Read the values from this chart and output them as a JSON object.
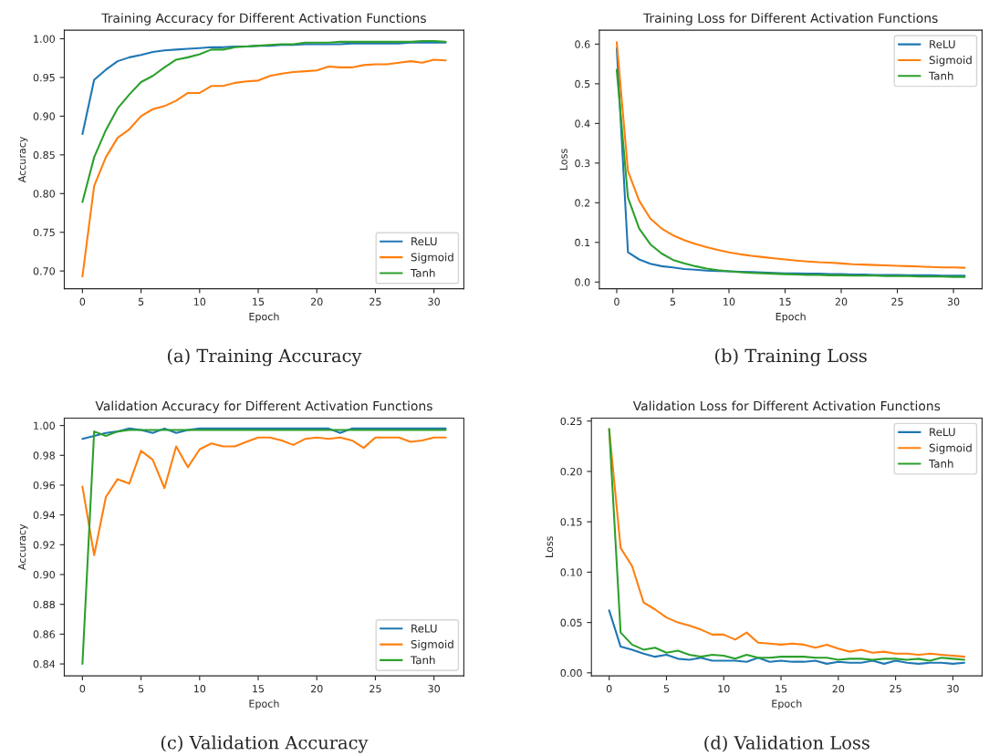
{
  "chart_data": [
    {
      "type": "line",
      "title": "Training Accuracy for Different Activation Functions",
      "xlabel": "Epoch",
      "ylabel": "Accuracy",
      "annotations": [
        "(a) Training Accuracy"
      ],
      "x": [
        0,
        1,
        2,
        3,
        4,
        5,
        6,
        7,
        8,
        9,
        10,
        11,
        12,
        13,
        14,
        15,
        16,
        17,
        18,
        19,
        20,
        21,
        22,
        23,
        24,
        25,
        26,
        27,
        28,
        29,
        30,
        31
      ],
      "xlim": [
        -1.55,
        32.55
      ],
      "xticks": [
        0,
        5,
        10,
        15,
        20,
        25,
        30
      ],
      "ylim": [
        0.677,
        1.011
      ],
      "yticks": [
        {
          "value": 0.7,
          "label": "0.70"
        },
        {
          "value": 0.75,
          "label": "0.75"
        },
        {
          "value": 0.8,
          "label": "0.80"
        },
        {
          "value": 0.85,
          "label": "0.85"
        },
        {
          "value": 0.9,
          "label": "0.90"
        },
        {
          "value": 0.95,
          "label": "0.95"
        },
        {
          "value": 1.0,
          "label": "1.00"
        }
      ],
      "legend": "lower right",
      "grid": false,
      "series": [
        {
          "name": "ReLU",
          "color": "#1f77b4",
          "values": [
            0.877,
            0.947,
            0.96,
            0.971,
            0.976,
            0.979,
            0.983,
            0.985,
            0.986,
            0.987,
            0.988,
            0.989,
            0.989,
            0.99,
            0.99,
            0.991,
            0.991,
            0.992,
            0.992,
            0.993,
            0.993,
            0.993,
            0.993,
            0.994,
            0.994,
            0.994,
            0.994,
            0.994,
            0.995,
            0.995,
            0.995,
            0.995
          ]
        },
        {
          "name": "Sigmoid",
          "color": "#ff7f0e",
          "values": [
            0.693,
            0.81,
            0.847,
            0.872,
            0.883,
            0.9,
            0.909,
            0.913,
            0.92,
            0.93,
            0.93,
            0.939,
            0.939,
            0.943,
            0.945,
            0.946,
            0.952,
            0.955,
            0.957,
            0.958,
            0.959,
            0.964,
            0.963,
            0.963,
            0.966,
            0.967,
            0.967,
            0.969,
            0.971,
            0.969,
            0.973,
            0.972
          ]
        },
        {
          "name": "Tanh",
          "color": "#2ca02c",
          "values": [
            0.789,
            0.847,
            0.882,
            0.91,
            0.928,
            0.944,
            0.952,
            0.963,
            0.973,
            0.976,
            0.98,
            0.986,
            0.986,
            0.989,
            0.99,
            0.991,
            0.992,
            0.993,
            0.993,
            0.995,
            0.995,
            0.995,
            0.996,
            0.996,
            0.996,
            0.996,
            0.996,
            0.996,
            0.996,
            0.997,
            0.997,
            0.996
          ]
        }
      ]
    },
    {
      "type": "line",
      "title": "Training Loss for Different Activation Functions",
      "xlabel": "Epoch",
      "ylabel": "Loss",
      "annotations": [
        "(b) Training Loss"
      ],
      "x": [
        0,
        1,
        2,
        3,
        4,
        5,
        6,
        7,
        8,
        9,
        10,
        11,
        12,
        13,
        14,
        15,
        16,
        17,
        18,
        19,
        20,
        21,
        22,
        23,
        24,
        25,
        26,
        27,
        28,
        29,
        30,
        31
      ],
      "xlim": [
        -1.55,
        32.55
      ],
      "xticks": [
        0,
        5,
        10,
        15,
        20,
        25,
        30
      ],
      "ylim": [
        -0.017,
        0.635
      ],
      "yticks": [
        {
          "value": 0.0,
          "label": "0.0"
        },
        {
          "value": 0.1,
          "label": "0.1"
        },
        {
          "value": 0.2,
          "label": "0.2"
        },
        {
          "value": 0.3,
          "label": "0.3"
        },
        {
          "value": 0.4,
          "label": "0.4"
        },
        {
          "value": 0.5,
          "label": "0.5"
        },
        {
          "value": 0.6,
          "label": "0.6"
        }
      ],
      "legend": "upper right",
      "grid": false,
      "series": [
        {
          "name": "ReLU",
          "color": "#1f77b4",
          "values": [
            0.59,
            0.075,
            0.057,
            0.046,
            0.04,
            0.037,
            0.033,
            0.031,
            0.029,
            0.028,
            0.027,
            0.026,
            0.025,
            0.024,
            0.023,
            0.022,
            0.022,
            0.021,
            0.021,
            0.02,
            0.02,
            0.019,
            0.019,
            0.018,
            0.018,
            0.018,
            0.017,
            0.017,
            0.017,
            0.016,
            0.016,
            0.016
          ]
        },
        {
          "name": "Sigmoid",
          "color": "#ff7f0e",
          "values": [
            0.605,
            0.28,
            0.205,
            0.16,
            0.135,
            0.118,
            0.106,
            0.096,
            0.088,
            0.081,
            0.075,
            0.07,
            0.066,
            0.063,
            0.06,
            0.057,
            0.054,
            0.052,
            0.05,
            0.049,
            0.047,
            0.045,
            0.044,
            0.043,
            0.042,
            0.041,
            0.04,
            0.039,
            0.038,
            0.037,
            0.037,
            0.036
          ]
        },
        {
          "name": "Tanh",
          "color": "#2ca02c",
          "values": [
            0.535,
            0.213,
            0.135,
            0.095,
            0.072,
            0.056,
            0.047,
            0.04,
            0.034,
            0.03,
            0.027,
            0.025,
            0.023,
            0.022,
            0.021,
            0.02,
            0.019,
            0.018,
            0.018,
            0.017,
            0.017,
            0.016,
            0.016,
            0.016,
            0.015,
            0.015,
            0.015,
            0.014,
            0.014,
            0.014,
            0.013,
            0.013
          ]
        }
      ]
    },
    {
      "type": "line",
      "title": "Validation Accuracy for Different Activation Functions",
      "xlabel": "Epoch",
      "ylabel": "Accuracy",
      "annotations": [
        "(c) Validation Accuracy"
      ],
      "x": [
        0,
        1,
        2,
        3,
        4,
        5,
        6,
        7,
        8,
        9,
        10,
        11,
        12,
        13,
        14,
        15,
        16,
        17,
        18,
        19,
        20,
        21,
        22,
        23,
        24,
        25,
        26,
        27,
        28,
        29,
        30,
        31
      ],
      "xlim": [
        -1.55,
        32.55
      ],
      "xticks": [
        0,
        5,
        10,
        15,
        20,
        25,
        30
      ],
      "ylim": [
        0.832,
        1.005
      ],
      "yticks": [
        {
          "value": 0.84,
          "label": "0.84"
        },
        {
          "value": 0.86,
          "label": "0.86"
        },
        {
          "value": 0.88,
          "label": "0.88"
        },
        {
          "value": 0.9,
          "label": "0.90"
        },
        {
          "value": 0.92,
          "label": "0.92"
        },
        {
          "value": 0.94,
          "label": "0.94"
        },
        {
          "value": 0.96,
          "label": "0.96"
        },
        {
          "value": 0.98,
          "label": "0.98"
        },
        {
          "value": 1.0,
          "label": "1.00"
        }
      ],
      "legend": "lower right",
      "grid": false,
      "series": [
        {
          "name": "ReLU",
          "color": "#1f77b4",
          "values": [
            0.991,
            0.993,
            0.995,
            0.996,
            0.998,
            0.997,
            0.995,
            0.998,
            0.995,
            0.997,
            0.998,
            0.998,
            0.998,
            0.998,
            0.998,
            0.998,
            0.998,
            0.998,
            0.998,
            0.998,
            0.998,
            0.998,
            0.995,
            0.998,
            0.998,
            0.998,
            0.998,
            0.998,
            0.998,
            0.998,
            0.998,
            0.998
          ]
        },
        {
          "name": "Sigmoid",
          "color": "#ff7f0e",
          "values": [
            0.959,
            0.913,
            0.952,
            0.964,
            0.961,
            0.983,
            0.977,
            0.958,
            0.986,
            0.972,
            0.984,
            0.988,
            0.986,
            0.986,
            0.989,
            0.992,
            0.992,
            0.99,
            0.987,
            0.991,
            0.992,
            0.991,
            0.992,
            0.99,
            0.985,
            0.992,
            0.992,
            0.992,
            0.989,
            0.99,
            0.992,
            0.992
          ]
        },
        {
          "name": "Tanh",
          "color": "#2ca02c",
          "values": [
            0.84,
            0.996,
            0.993,
            0.996,
            0.997,
            0.997,
            0.997,
            0.997,
            0.997,
            0.997,
            0.997,
            0.997,
            0.997,
            0.997,
            0.997,
            0.997,
            0.997,
            0.997,
            0.997,
            0.997,
            0.997,
            0.997,
            0.997,
            0.997,
            0.997,
            0.997,
            0.997,
            0.997,
            0.997,
            0.997,
            0.997,
            0.997
          ]
        }
      ]
    },
    {
      "type": "line",
      "title": "Validation Loss for Different Activation Functions",
      "xlabel": "Epoch",
      "ylabel": "Loss",
      "annotations": [
        "(d) Validation Loss"
      ],
      "x": [
        0,
        1,
        2,
        3,
        4,
        5,
        6,
        7,
        8,
        9,
        10,
        11,
        12,
        13,
        14,
        15,
        16,
        17,
        18,
        19,
        20,
        21,
        22,
        23,
        24,
        25,
        26,
        27,
        28,
        29,
        30,
        31
      ],
      "xlim": [
        -1.55,
        32.55
      ],
      "xticks": [
        0,
        5,
        10,
        15,
        20,
        25,
        30
      ],
      "ylim": [
        -0.003,
        0.253
      ],
      "yticks": [
        {
          "value": 0.0,
          "label": "0.00"
        },
        {
          "value": 0.05,
          "label": "0.05"
        },
        {
          "value": 0.1,
          "label": "0.10"
        },
        {
          "value": 0.15,
          "label": "0.15"
        },
        {
          "value": 0.2,
          "label": "0.20"
        },
        {
          "value": 0.25,
          "label": "0.25"
        }
      ],
      "legend": "upper right",
      "grid": false,
      "series": [
        {
          "name": "ReLU",
          "color": "#1f77b4",
          "values": [
            0.062,
            0.026,
            0.023,
            0.019,
            0.016,
            0.018,
            0.014,
            0.013,
            0.015,
            0.012,
            0.012,
            0.012,
            0.011,
            0.015,
            0.011,
            0.012,
            0.011,
            0.011,
            0.012,
            0.009,
            0.011,
            0.01,
            0.01,
            0.012,
            0.009,
            0.012,
            0.01,
            0.009,
            0.01,
            0.01,
            0.009,
            0.01
          ]
        },
        {
          "name": "Sigmoid",
          "color": "#ff7f0e",
          "values": [
            0.242,
            0.124,
            0.106,
            0.07,
            0.063,
            0.055,
            0.05,
            0.047,
            0.043,
            0.038,
            0.038,
            0.033,
            0.04,
            0.03,
            0.029,
            0.028,
            0.029,
            0.028,
            0.025,
            0.028,
            0.024,
            0.021,
            0.023,
            0.02,
            0.021,
            0.019,
            0.019,
            0.018,
            0.019,
            0.018,
            0.017,
            0.016
          ]
        },
        {
          "name": "Tanh",
          "color": "#2ca02c",
          "values": [
            0.242,
            0.04,
            0.028,
            0.023,
            0.025,
            0.02,
            0.022,
            0.018,
            0.016,
            0.018,
            0.017,
            0.014,
            0.018,
            0.015,
            0.015,
            0.016,
            0.016,
            0.016,
            0.015,
            0.015,
            0.013,
            0.014,
            0.014,
            0.013,
            0.014,
            0.014,
            0.013,
            0.014,
            0.012,
            0.015,
            0.014,
            0.013
          ]
        }
      ]
    }
  ]
}
